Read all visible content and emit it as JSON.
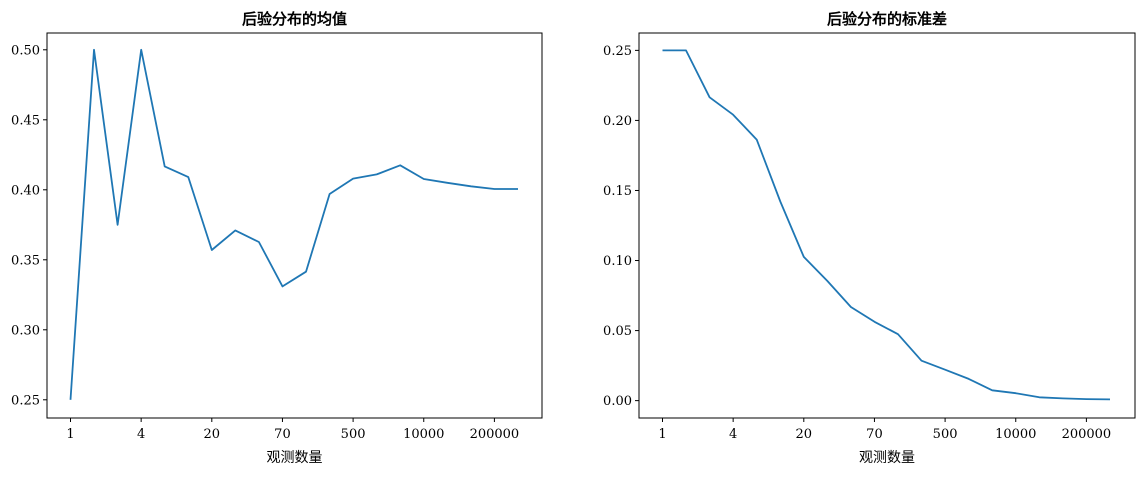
{
  "chart_data": [
    {
      "type": "line",
      "title": "后验分布的均值",
      "xlabel": "观测数量",
      "ylabel": "",
      "xticks": [
        "1",
        "4",
        "20",
        "70",
        "500",
        "10000",
        "200000"
      ],
      "yticks": [
        "0.25",
        "0.30",
        "0.35",
        "0.40",
        "0.45",
        "0.50"
      ],
      "ylim": [
        0.237,
        0.512
      ],
      "grid": false,
      "values": [
        0.25,
        0.5,
        0.375,
        0.5,
        0.4167,
        0.4091,
        0.357,
        0.371,
        0.3627,
        0.331,
        0.3415,
        0.397,
        0.408,
        0.411,
        0.4175,
        0.4077,
        0.405,
        0.4025,
        0.4006,
        0.4006
      ]
    },
    {
      "type": "line",
      "title": "后验分布的标准差",
      "xlabel": "观测数量",
      "ylabel": "",
      "xticks": [
        "1",
        "4",
        "20",
        "70",
        "500",
        "10000",
        "200000"
      ],
      "yticks": [
        "0.00",
        "0.05",
        "0.10",
        "0.15",
        "0.20",
        "0.25"
      ],
      "ylim": [
        -0.0124,
        0.2624
      ],
      "grid": false,
      "values": [
        0.25,
        0.25,
        0.2165,
        0.2041,
        0.1863,
        0.1421,
        0.1026,
        0.0854,
        0.0668,
        0.0563,
        0.0474,
        0.0285,
        0.0221,
        0.0155,
        0.0074,
        0.0053,
        0.0024,
        0.0016,
        0.0011,
        0.0009
      ]
    }
  ]
}
